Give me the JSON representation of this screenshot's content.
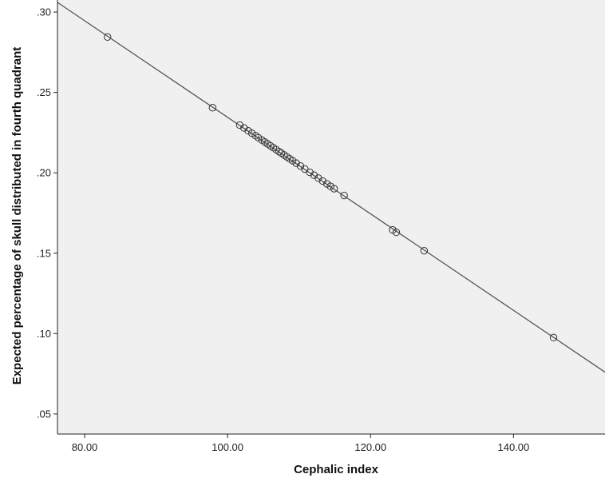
{
  "chart_data": {
    "type": "scatter",
    "title": "",
    "xlabel": "Cephalic index",
    "ylabel": "Expected percentage of skull distributed in fourth quadrant",
    "xlim": [
      76.2,
      152.8
    ],
    "ylim": [
      0.0375,
      0.3075
    ],
    "grid": false,
    "background_color": "#f0f0f0",
    "point_color": "#333333",
    "line_color": "#555555",
    "x_ticks": [
      {
        "value": 80,
        "label": "80.00"
      },
      {
        "value": 100,
        "label": "100.00"
      },
      {
        "value": 120,
        "label": "120.00"
      },
      {
        "value": 140,
        "label": "140.00"
      }
    ],
    "y_ticks": [
      {
        "value": 0.05,
        "label": ".05"
      },
      {
        "value": 0.1,
        "label": ".10"
      },
      {
        "value": 0.15,
        "label": ".15"
      },
      {
        "value": 0.2,
        "label": ".20"
      },
      {
        "value": 0.25,
        "label": ".25"
      },
      {
        "value": 0.3,
        "label": ".30"
      }
    ],
    "fit_line": {
      "x": [
        76.2,
        152.8
      ],
      "y": [
        0.306,
        0.076
      ]
    },
    "series": [
      {
        "points": [
          {
            "x": 83.2,
            "y": 0.2845
          },
          {
            "x": 97.9,
            "y": 0.2405
          },
          {
            "x": 101.7,
            "y": 0.2297
          },
          {
            "x": 102.3,
            "y": 0.2279
          },
          {
            "x": 102.9,
            "y": 0.2261
          },
          {
            "x": 103.4,
            "y": 0.2246
          },
          {
            "x": 103.9,
            "y": 0.2231
          },
          {
            "x": 104.3,
            "y": 0.2219
          },
          {
            "x": 104.8,
            "y": 0.2204
          },
          {
            "x": 105.2,
            "y": 0.2192
          },
          {
            "x": 105.6,
            "y": 0.218
          },
          {
            "x": 106.0,
            "y": 0.2168
          },
          {
            "x": 106.4,
            "y": 0.2156
          },
          {
            "x": 106.8,
            "y": 0.2144
          },
          {
            "x": 107.2,
            "y": 0.2132
          },
          {
            "x": 107.5,
            "y": 0.2123
          },
          {
            "x": 107.9,
            "y": 0.2111
          },
          {
            "x": 108.3,
            "y": 0.2099
          },
          {
            "x": 108.7,
            "y": 0.2087
          },
          {
            "x": 109.1,
            "y": 0.2075
          },
          {
            "x": 109.6,
            "y": 0.206
          },
          {
            "x": 110.2,
            "y": 0.2042
          },
          {
            "x": 110.8,
            "y": 0.2024
          },
          {
            "x": 111.5,
            "y": 0.2003
          },
          {
            "x": 112.1,
            "y": 0.1985
          },
          {
            "x": 112.7,
            "y": 0.1967
          },
          {
            "x": 113.3,
            "y": 0.1949
          },
          {
            "x": 113.9,
            "y": 0.1931
          },
          {
            "x": 114.4,
            "y": 0.1916
          },
          {
            "x": 114.9,
            "y": 0.1901
          },
          {
            "x": 116.3,
            "y": 0.1859
          },
          {
            "x": 123.1,
            "y": 0.1645
          },
          {
            "x": 123.6,
            "y": 0.163
          },
          {
            "x": 127.5,
            "y": 0.1515
          },
          {
            "x": 145.6,
            "y": 0.0975
          }
        ]
      }
    ]
  }
}
